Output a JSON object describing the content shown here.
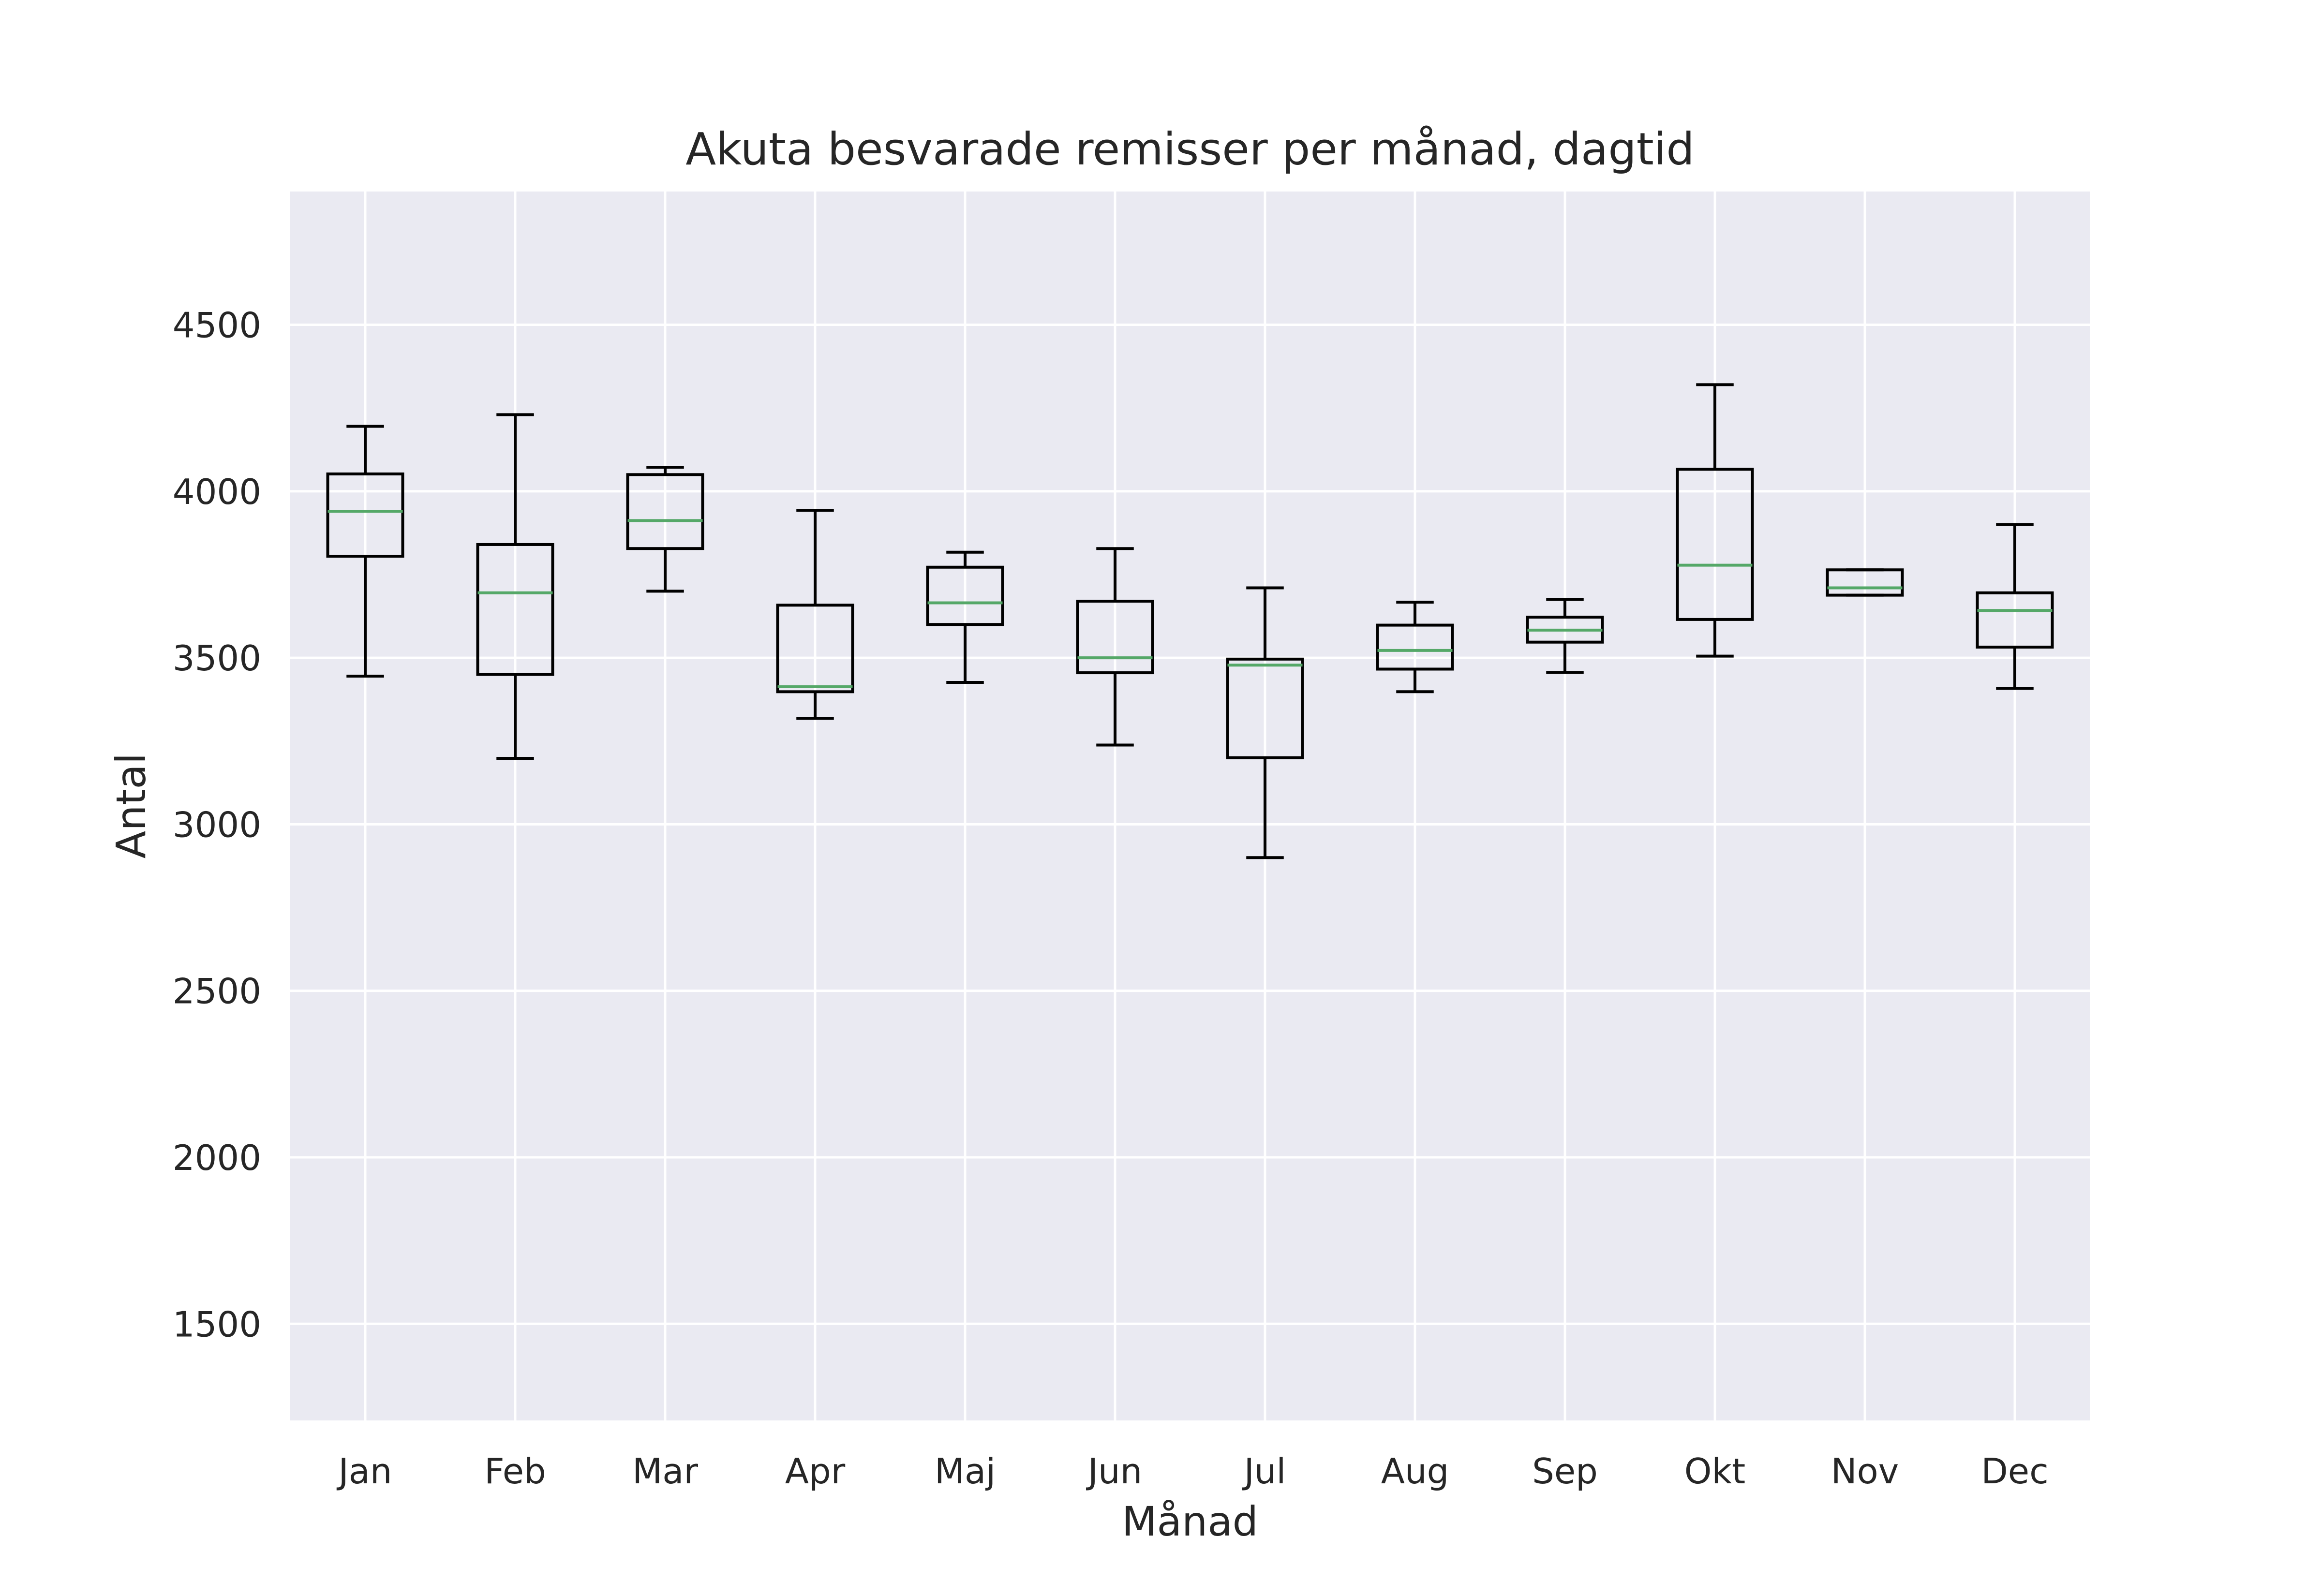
{
  "chart_data": {
    "type": "box",
    "title": "Akuta besvarade remisser per månad, dagtid",
    "xlabel": "Månad",
    "ylabel": "Antal",
    "ylim": [
      1210,
      4900
    ],
    "yticks": [
      1500,
      2000,
      2500,
      3000,
      3500,
      4000,
      4500
    ],
    "grid": true,
    "colors": {
      "background": "#eaeaf2",
      "grid": "#ffffff",
      "box": "#000000",
      "median": "#55a868",
      "text": "#262626"
    },
    "categories": [
      "Jan",
      "Feb",
      "Mar",
      "Apr",
      "Maj",
      "Jun",
      "Jul",
      "Aug",
      "Sep",
      "Okt",
      "Nov",
      "Dec"
    ],
    "boxes": [
      {
        "whisker_low": 3445,
        "q1": 3805,
        "median": 3940,
        "q3": 4052,
        "whisker_high": 4195
      },
      {
        "whisker_low": 3198,
        "q1": 3450,
        "median": 3695,
        "q3": 3840,
        "whisker_high": 4230
      },
      {
        "whisker_low": 3700,
        "q1": 3828,
        "median": 3912,
        "q3": 4050,
        "whisker_high": 4072
      },
      {
        "whisker_low": 3318,
        "q1": 3398,
        "median": 3413,
        "q3": 3658,
        "whisker_high": 3943
      },
      {
        "whisker_low": 3426,
        "q1": 3600,
        "median": 3665,
        "q3": 3772,
        "whisker_high": 3817
      },
      {
        "whisker_low": 3238,
        "q1": 3455,
        "median": 3500,
        "q3": 3670,
        "whisker_high": 3828
      },
      {
        "whisker_low": 2900,
        "q1": 3200,
        "median": 3478,
        "q3": 3496,
        "whisker_high": 3710
      },
      {
        "whisker_low": 3398,
        "q1": 3466,
        "median": 3522,
        "q3": 3598,
        "whisker_high": 3667
      },
      {
        "whisker_low": 3456,
        "q1": 3547,
        "median": 3583,
        "q3": 3622,
        "whisker_high": 3675
      },
      {
        "whisker_low": 3505,
        "q1": 3615,
        "median": 3778,
        "q3": 4066,
        "whisker_high": 4320
      },
      {
        "whisker_low": 3688,
        "q1": 3688,
        "median": 3710,
        "q3": 3764,
        "whisker_high": 3764
      },
      {
        "whisker_low": 3408,
        "q1": 3532,
        "median": 3642,
        "q3": 3695,
        "whisker_high": 3900
      }
    ]
  }
}
